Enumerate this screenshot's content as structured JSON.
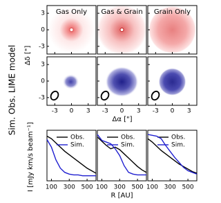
{
  "figure_label": "Sim. Obs. LIME model",
  "image_panels": {
    "columns": [
      "Gas Only",
      "Gas & Grain",
      "Grain Only"
    ],
    "xlabel": "Δα [\"]",
    "ylabel": "Δδ [\"]",
    "xlim": [
      -4.4,
      4.4
    ],
    "ylim": [
      -4.4,
      4.4
    ],
    "xticks": [
      -3,
      0,
      3
    ],
    "yticks": [
      -3,
      0,
      3
    ]
  },
  "chart_data": [
    {
      "type": "line",
      "ylabel": "I [mJy km/s beam⁻¹]",
      "x": [
        50,
        100,
        150,
        200,
        250,
        300,
        350,
        400,
        450,
        500,
        550,
        600
      ],
      "xlim": [
        50,
        600
      ],
      "xticks": [
        100,
        300,
        500
      ],
      "ylim": [
        0,
        60
      ],
      "series": [
        {
          "name": "Obs.",
          "color": "#000000",
          "values": [
            53,
            50,
            45,
            40,
            35,
            31,
            27,
            23,
            19,
            15,
            12,
            9
          ]
        },
        {
          "name": "Sim.",
          "color": "#1f1fd0",
          "values": [
            49,
            40,
            25,
            15,
            10,
            8,
            7,
            7,
            6,
            6,
            6,
            6
          ]
        }
      ]
    },
    {
      "type": "line",
      "xlabel": "R [AU]",
      "x": [
        50,
        100,
        150,
        200,
        250,
        300,
        350,
        400,
        450,
        500,
        550,
        600
      ],
      "xlim": [
        50,
        600
      ],
      "xticks": [
        100,
        300,
        500
      ],
      "ylim": [
        0,
        60
      ],
      "series": [
        {
          "name": "Obs.",
          "color": "#000000",
          "values": [
            52,
            47,
            42,
            38,
            40,
            37,
            32,
            27,
            22,
            17,
            13,
            10
          ]
        },
        {
          "name": "Sim.",
          "color": "#1f1fd0",
          "values": [
            55,
            48,
            46,
            44,
            38,
            30,
            18,
            10,
            8,
            7,
            7,
            7
          ]
        }
      ]
    },
    {
      "type": "line",
      "x": [
        50,
        100,
        150,
        200,
        250,
        300,
        350,
        400,
        450,
        500,
        550,
        600
      ],
      "xlim": [
        50,
        600
      ],
      "xticks": [
        100,
        300,
        500
      ],
      "ylim": [
        0,
        60
      ],
      "series": [
        {
          "name": "Obs.",
          "color": "#000000",
          "values": [
            50,
            46,
            41,
            36,
            32,
            28,
            24,
            20,
            17,
            14,
            11,
            9
          ]
        },
        {
          "name": "Sim.",
          "color": "#1f1fd0",
          "values": [
            55,
            54,
            53,
            50,
            42,
            35,
            28,
            22,
            16,
            12,
            10,
            8
          ]
        }
      ]
    }
  ]
}
